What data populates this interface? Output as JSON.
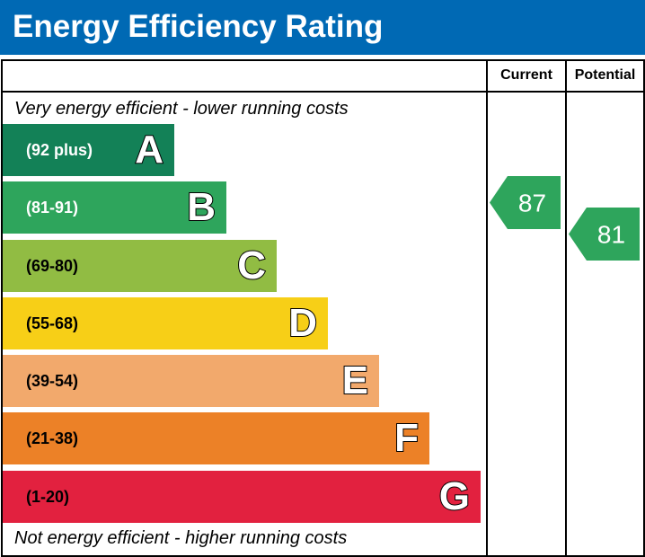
{
  "title": "Energy Efficiency Rating",
  "columns": {
    "current": "Current",
    "potential": "Potential"
  },
  "notes": {
    "top": "Very energy efficient - lower running costs",
    "bottom": "Not energy efficient - higher running costs"
  },
  "chart_data": {
    "type": "bar",
    "categories": [
      "A",
      "B",
      "C",
      "D",
      "E",
      "F",
      "G"
    ],
    "bands": [
      {
        "letter": "A",
        "range": "(92 plus)",
        "color": "#138157",
        "text_color": "#ffffff"
      },
      {
        "letter": "B",
        "range": "(81-91)",
        "color": "#2ea55c",
        "text_color": "#ffffff"
      },
      {
        "letter": "C",
        "range": "(69-80)",
        "color": "#91bc43",
        "text_color": "#000000"
      },
      {
        "letter": "D",
        "range": "(55-68)",
        "color": "#f7cf17",
        "text_color": "#000000"
      },
      {
        "letter": "E",
        "range": "(39-54)",
        "color": "#f2a96c",
        "text_color": "#000000"
      },
      {
        "letter": "F",
        "range": "(21-38)",
        "color": "#ec8127",
        "text_color": "#000000"
      },
      {
        "letter": "G",
        "range": "(1-20)",
        "color": "#e2213f",
        "text_color": "#000000"
      }
    ],
    "current": {
      "value": 87,
      "band": "B",
      "color": "#2ea55c"
    },
    "potential": {
      "value": 81,
      "band": "B",
      "color": "#2ea55c"
    }
  }
}
